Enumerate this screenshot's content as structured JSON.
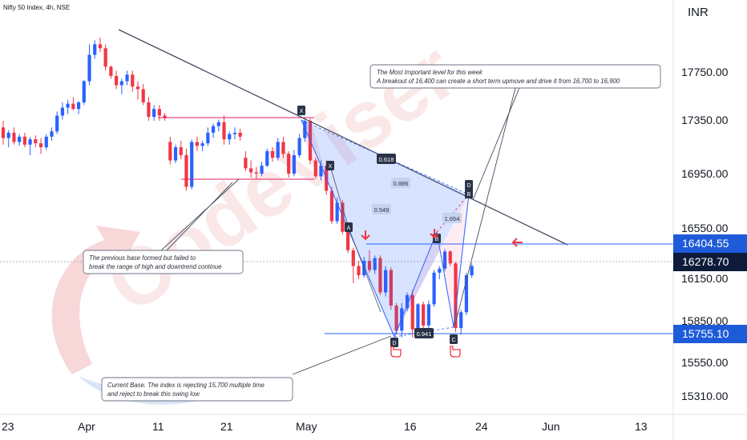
{
  "header": {
    "title": "Nifty 50 Index, 4h, NSE"
  },
  "watermark": {
    "text": "CodeViser"
  },
  "price_axis": {
    "currency": "INR",
    "ticks": [
      "17750.00",
      "17350.00",
      "16950.00",
      "16550.00",
      "16150.00",
      "15850.00",
      "15550.00",
      "15310.00"
    ],
    "badges": [
      {
        "label": "16404.55",
        "color": "#1e5bd9"
      },
      {
        "label": "16278.70",
        "color": "#0d1a3a"
      },
      {
        "label": "15755.10",
        "color": "#1e5bd9"
      }
    ]
  },
  "time_axis": {
    "ticks": [
      "23",
      "Apr",
      "11",
      "21",
      "May",
      "16",
      "24",
      "Jun",
      "13"
    ]
  },
  "annotations": {
    "note_top": {
      "line1": "The Most Important level for this week",
      "line2": "A breakout of 16,400 can create a short term upmove and drive it from 16,700 to 16,900"
    },
    "note_left": {
      "line1": "The previous base formed but failed to",
      "line2": "break the range of high and downtrend continue"
    },
    "note_bottom": {
      "line1": "Current Base. The index is rejecting 15,700 multiple time",
      "line2": "and reject to break this swing low"
    },
    "pattern_points": [
      "X",
      "X",
      "A",
      "B",
      "C",
      "D",
      "D",
      "B"
    ],
    "ratios": [
      "0.618",
      "0.886",
      "0.549",
      "1.654",
      "0.941"
    ]
  },
  "colors": {
    "up": "#2962ff",
    "down": "#f23645",
    "pattern": "#2962ff",
    "pattern_alt": "#e91e63"
  },
  "chart_data": {
    "type": "candlestick",
    "title": "Nifty 50 Index, 4h, NSE",
    "unit": "INR",
    "price_range": [
      15200,
      18000
    ],
    "levels": [
      16404.55,
      16278.7,
      15755.1
    ],
    "candles": [
      {
        "o": 17330,
        "h": 17380,
        "l": 17200,
        "c": 17250
      },
      {
        "o": 17250,
        "h": 17310,
        "l": 17180,
        "c": 17290
      },
      {
        "o": 17290,
        "h": 17330,
        "l": 17200,
        "c": 17220
      },
      {
        "o": 17220,
        "h": 17280,
        "l": 17190,
        "c": 17260
      },
      {
        "o": 17260,
        "h": 17290,
        "l": 17180,
        "c": 17200
      },
      {
        "o": 17200,
        "h": 17260,
        "l": 17120,
        "c": 17240
      },
      {
        "o": 17240,
        "h": 17270,
        "l": 17180,
        "c": 17210
      },
      {
        "o": 17210,
        "h": 17250,
        "l": 17130,
        "c": 17180
      },
      {
        "o": 17180,
        "h": 17280,
        "l": 17160,
        "c": 17260
      },
      {
        "o": 17260,
        "h": 17330,
        "l": 17230,
        "c": 17300
      },
      {
        "o": 17300,
        "h": 17450,
        "l": 17280,
        "c": 17420
      },
      {
        "o": 17420,
        "h": 17520,
        "l": 17390,
        "c": 17480
      },
      {
        "o": 17480,
        "h": 17540,
        "l": 17430,
        "c": 17510
      },
      {
        "o": 17510,
        "h": 17560,
        "l": 17460,
        "c": 17470
      },
      {
        "o": 17470,
        "h": 17530,
        "l": 17430,
        "c": 17520
      },
      {
        "o": 17520,
        "h": 17690,
        "l": 17500,
        "c": 17680
      },
      {
        "o": 17680,
        "h": 17960,
        "l": 17650,
        "c": 17880
      },
      {
        "o": 17880,
        "h": 17990,
        "l": 17850,
        "c": 17960
      },
      {
        "o": 17960,
        "h": 18010,
        "l": 17900,
        "c": 17930
      },
      {
        "o": 17930,
        "h": 17960,
        "l": 17760,
        "c": 17790
      },
      {
        "o": 17790,
        "h": 17800,
        "l": 17700,
        "c": 17720
      },
      {
        "o": 17720,
        "h": 17760,
        "l": 17620,
        "c": 17650
      },
      {
        "o": 17650,
        "h": 17700,
        "l": 17580,
        "c": 17680
      },
      {
        "o": 17680,
        "h": 17760,
        "l": 17650,
        "c": 17730
      },
      {
        "o": 17730,
        "h": 17760,
        "l": 17600,
        "c": 17640
      },
      {
        "o": 17640,
        "h": 17680,
        "l": 17540,
        "c": 17620
      },
      {
        "o": 17620,
        "h": 17660,
        "l": 17500,
        "c": 17520
      },
      {
        "o": 17520,
        "h": 17560,
        "l": 17380,
        "c": 17410
      },
      {
        "o": 17410,
        "h": 17500,
        "l": 17380,
        "c": 17470
      },
      {
        "o": 17470,
        "h": 17500,
        "l": 17380,
        "c": 17420
      },
      {
        "o": 17420,
        "h": 17440,
        "l": 17380,
        "c": 17400
      },
      {
        "o": 17220,
        "h": 17260,
        "l": 17050,
        "c": 17080
      },
      {
        "o": 17080,
        "h": 17200,
        "l": 17060,
        "c": 17180
      },
      {
        "o": 17180,
        "h": 17230,
        "l": 17090,
        "c": 17120
      },
      {
        "o": 17120,
        "h": 17170,
        "l": 16850,
        "c": 16880
      },
      {
        "o": 16880,
        "h": 17240,
        "l": 16860,
        "c": 17220
      },
      {
        "o": 17220,
        "h": 17260,
        "l": 17150,
        "c": 17190
      },
      {
        "o": 17190,
        "h": 17230,
        "l": 17150,
        "c": 17210
      },
      {
        "o": 17210,
        "h": 17330,
        "l": 17190,
        "c": 17290
      },
      {
        "o": 17290,
        "h": 17360,
        "l": 17250,
        "c": 17340
      },
      {
        "o": 17340,
        "h": 17390,
        "l": 17300,
        "c": 17370
      },
      {
        "o": 17370,
        "h": 17420,
        "l": 17200,
        "c": 17240
      },
      {
        "o": 17240,
        "h": 17300,
        "l": 17200,
        "c": 17280
      },
      {
        "o": 17280,
        "h": 17330,
        "l": 17240,
        "c": 17290
      },
      {
        "o": 17290,
        "h": 17320,
        "l": 17230,
        "c": 17260
      },
      {
        "o": 17100,
        "h": 17150,
        "l": 17000,
        "c": 17020
      },
      {
        "o": 17020,
        "h": 17080,
        "l": 16950,
        "c": 16990
      },
      {
        "o": 16990,
        "h": 17030,
        "l": 16940,
        "c": 16980
      },
      {
        "o": 16980,
        "h": 17070,
        "l": 16960,
        "c": 17040
      },
      {
        "o": 17040,
        "h": 17170,
        "l": 17030,
        "c": 17150
      },
      {
        "o": 17150,
        "h": 17180,
        "l": 17070,
        "c": 17100
      },
      {
        "o": 17100,
        "h": 17250,
        "l": 17080,
        "c": 17220
      },
      {
        "o": 17220,
        "h": 17260,
        "l": 17100,
        "c": 17130
      },
      {
        "o": 17130,
        "h": 17150,
        "l": 16950,
        "c": 16980
      },
      {
        "o": 16980,
        "h": 17160,
        "l": 16960,
        "c": 17120
      },
      {
        "o": 17120,
        "h": 17280,
        "l": 17100,
        "c": 17250
      },
      {
        "o": 17250,
        "h": 17390,
        "l": 17220,
        "c": 17380
      },
      {
        "o": 17380,
        "h": 17400,
        "l": 17050,
        "c": 17080
      },
      {
        "o": 17080,
        "h": 17100,
        "l": 16940,
        "c": 16960
      },
      {
        "o": 16960,
        "h": 17080,
        "l": 16930,
        "c": 17040
      },
      {
        "o": 17040,
        "h": 17080,
        "l": 16820,
        "c": 16850
      },
      {
        "o": 16850,
        "h": 16880,
        "l": 16600,
        "c": 16620
      },
      {
        "o": 16620,
        "h": 16800,
        "l": 16600,
        "c": 16760
      },
      {
        "o": 16760,
        "h": 16780,
        "l": 16520,
        "c": 16540
      },
      {
        "o": 16540,
        "h": 16560,
        "l": 16380,
        "c": 16400
      },
      {
        "o": 16400,
        "h": 16420,
        "l": 16150,
        "c": 16280
      },
      {
        "o": 16280,
        "h": 16320,
        "l": 16180,
        "c": 16210
      },
      {
        "o": 16210,
        "h": 16350,
        "l": 16190,
        "c": 16320
      },
      {
        "o": 16320,
        "h": 16400,
        "l": 16230,
        "c": 16250
      },
      {
        "o": 16250,
        "h": 16360,
        "l": 16220,
        "c": 16340
      },
      {
        "o": 16340,
        "h": 16360,
        "l": 16060,
        "c": 16080
      },
      {
        "o": 16080,
        "h": 16280,
        "l": 16050,
        "c": 16250
      },
      {
        "o": 16250,
        "h": 16270,
        "l": 15950,
        "c": 15980
      },
      {
        "o": 15980,
        "h": 16000,
        "l": 15760,
        "c": 15790
      },
      {
        "o": 15790,
        "h": 16000,
        "l": 15740,
        "c": 15960
      },
      {
        "o": 15960,
        "h": 16080,
        "l": 15940,
        "c": 16060
      },
      {
        "o": 16060,
        "h": 16100,
        "l": 15740,
        "c": 15800
      },
      {
        "o": 15800,
        "h": 16000,
        "l": 15760,
        "c": 15990
      },
      {
        "o": 15990,
        "h": 16010,
        "l": 15800,
        "c": 15830
      },
      {
        "o": 15830,
        "h": 16020,
        "l": 15800,
        "c": 15990
      },
      {
        "o": 15990,
        "h": 16250,
        "l": 15970,
        "c": 16230
      },
      {
        "o": 16230,
        "h": 16280,
        "l": 16180,
        "c": 16260
      },
      {
        "o": 16260,
        "h": 16410,
        "l": 16240,
        "c": 16390
      },
      {
        "o": 16390,
        "h": 16400,
        "l": 16280,
        "c": 16300
      },
      {
        "o": 16300,
        "h": 16310,
        "l": 15780,
        "c": 15810
      },
      {
        "o": 15810,
        "h": 15950,
        "l": 15760,
        "c": 15930
      },
      {
        "o": 15930,
        "h": 16230,
        "l": 15910,
        "c": 16210
      },
      {
        "o": 16210,
        "h": 16300,
        "l": 16190,
        "c": 16280
      }
    ]
  }
}
